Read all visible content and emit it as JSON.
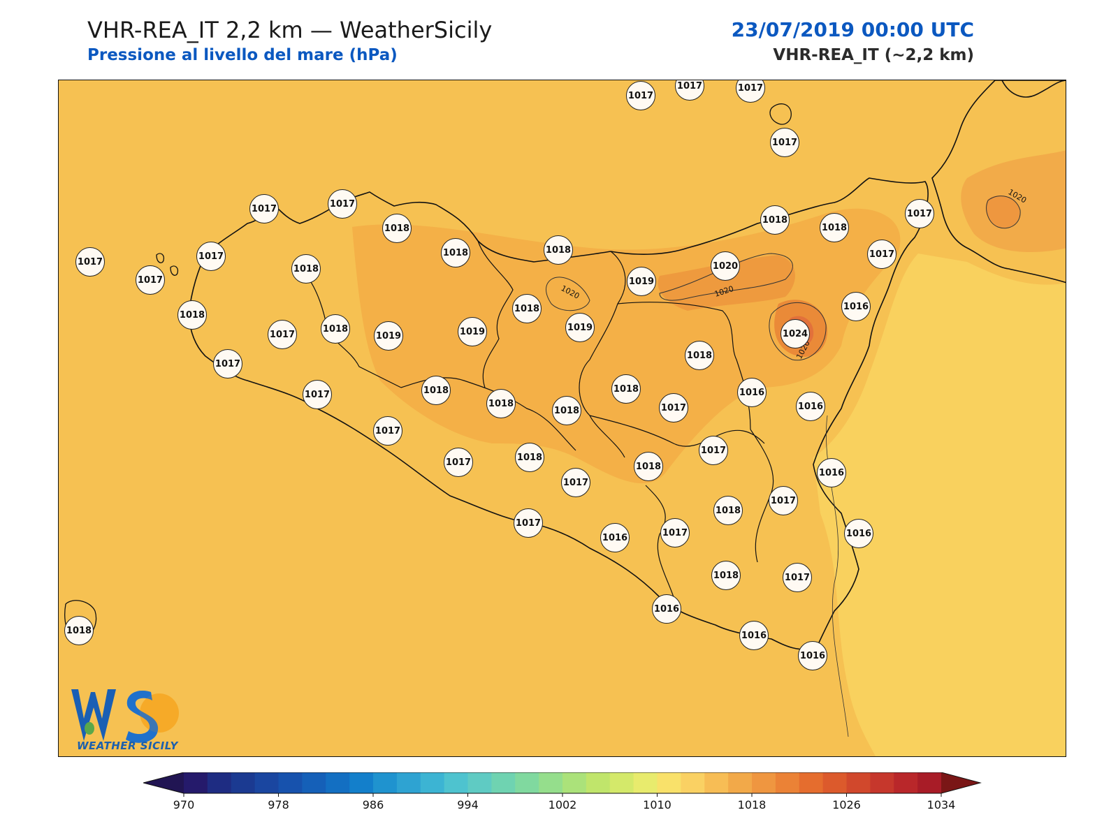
{
  "header": {
    "title": "VHR-REA_IT 2,2 km — WeatherSicily",
    "subtitle": "Pressione al livello del mare (hPa)",
    "datetime": "23/07/2019 00:00 UTC",
    "model": "VHR-REA_IT (~2,2 km)"
  },
  "map": {
    "contour_labels": [
      "1020",
      "1020",
      "1020",
      "1020"
    ],
    "stations": [
      {
        "value": "1017"
      },
      {
        "value": "1017"
      },
      {
        "value": "1017"
      },
      {
        "value": "1017"
      },
      {
        "value": "1017"
      },
      {
        "value": "1017"
      },
      {
        "value": "1018"
      },
      {
        "value": "1018"
      },
      {
        "value": "1018"
      },
      {
        "value": "1018"
      },
      {
        "value": "1018"
      },
      {
        "value": "1017"
      },
      {
        "value": "1017"
      },
      {
        "value": "1017"
      },
      {
        "value": "1017"
      },
      {
        "value": "1018"
      },
      {
        "value": "1020"
      },
      {
        "value": "1019"
      },
      {
        "value": "1017"
      },
      {
        "value": "1018"
      },
      {
        "value": "1019"
      },
      {
        "value": "1019"
      },
      {
        "value": "1018"
      },
      {
        "value": "1019"
      },
      {
        "value": "1024"
      },
      {
        "value": "1016"
      },
      {
        "value": "1018"
      },
      {
        "value": "1017"
      },
      {
        "value": "1018"
      },
      {
        "value": "1018"
      },
      {
        "value": "1018"
      },
      {
        "value": "1017"
      },
      {
        "value": "1016"
      },
      {
        "value": "1016"
      },
      {
        "value": "1017"
      },
      {
        "value": "1018"
      },
      {
        "value": "1018"
      },
      {
        "value": "1017"
      },
      {
        "value": "1017"
      },
      {
        "value": "1018"
      },
      {
        "value": "1017"
      },
      {
        "value": "1017"
      },
      {
        "value": "1016"
      },
      {
        "value": "1018"
      },
      {
        "value": "1017"
      },
      {
        "value": "1017"
      },
      {
        "value": "1016"
      },
      {
        "value": "1017"
      },
      {
        "value": "1018"
      },
      {
        "value": "1017"
      },
      {
        "value": "1016"
      },
      {
        "value": "1016"
      },
      {
        "value": "1016"
      },
      {
        "value": "1016"
      }
    ]
  },
  "logo": {
    "text": "WEATHER SICILY"
  },
  "colorbar": {
    "tick_labels": [
      "970",
      "978",
      "986",
      "994",
      "1002",
      "1010",
      "1018",
      "1026",
      "1034"
    ],
    "colors": [
      "#211553",
      "#251a6b",
      "#1e2c82",
      "#1b3a91",
      "#1a46a0",
      "#1752ad",
      "#1560b8",
      "#136fc2",
      "#137fcb",
      "#1f93cf",
      "#2ea3d2",
      "#3cb4d3",
      "#4ec3cf",
      "#5fcbc3",
      "#6fd3b1",
      "#80d99f",
      "#95de8c",
      "#abe27a",
      "#c0e56b",
      "#d4e96a",
      "#e8eb6d",
      "#f9e16a",
      "#fad163",
      "#f7bd55",
      "#f2a949",
      "#ef9640",
      "#eb8236",
      "#e56d2e",
      "#dc5a2c",
      "#d1482c",
      "#c6372c",
      "#b9272a",
      "#a81c27",
      "#7a1616"
    ],
    "min": 970,
    "max": 1034,
    "step": 2
  }
}
